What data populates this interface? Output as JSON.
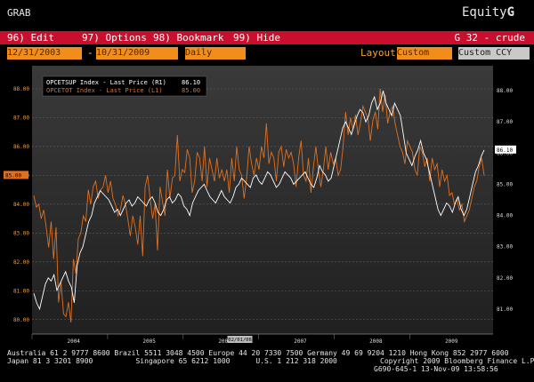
{
  "topbar": {
    "left_label": "GRAB",
    "right_label_a": "Equity",
    "right_label_b": "G"
  },
  "menu": {
    "items": [
      {
        "num": "96)",
        "label": "Edit"
      },
      {
        "num": "97)",
        "label": "Options"
      },
      {
        "num": "98)",
        "label": "Bookmark"
      },
      {
        "num": "99)",
        "label": "Hide"
      }
    ],
    "right": "G 32 - crude"
  },
  "controls": {
    "start_date": "12/31/2003",
    "end_date": "10/31/2009",
    "dash": "-",
    "period": "Daily",
    "layout_label": "Layout",
    "layout_value": "Custom",
    "ccy": "Custom CCY"
  },
  "legend": {
    "entries": [
      {
        "text": "OPCETSUP Index - Last Price (R1)",
        "value": "86.10",
        "color": "#ffffff"
      },
      {
        "text": "OPCETOT Index - Last Price (L1)",
        "value": "85.00",
        "color": "#e07020"
      }
    ]
  },
  "chart_data": {
    "type": "line",
    "x_ticks": [
      "2004",
      "2005",
      "2006",
      "2007",
      "2008",
      "2009"
    ],
    "x_highlight": "02/01/06",
    "left_axis": {
      "ticks": [
        80,
        81,
        82,
        83,
        84,
        85,
        86,
        87,
        88
      ],
      "ylim": [
        79.5,
        88.8
      ],
      "current_label": "85.00"
    },
    "right_axis": {
      "ticks": [
        81,
        82,
        83,
        84,
        85,
        86,
        87,
        88
      ],
      "ylim": [
        80.2,
        88.8
      ],
      "current_label": "86.10"
    },
    "series": [
      {
        "name": "OPCETOT Index - Last Price (L1)",
        "color": "#e07020",
        "axis": "left",
        "values": [
          84.3,
          83.9,
          84.0,
          83.5,
          83.8,
          83.2,
          82.5,
          83.4,
          82.1,
          83.2,
          80.6,
          81.3,
          80.2,
          80.1,
          80.6,
          79.9,
          82.1,
          81.6,
          82.8,
          83.0,
          83.6,
          83.4,
          84.5,
          84.0,
          84.6,
          84.8,
          84.2,
          84.5,
          84.6,
          85.0,
          84.4,
          84.8,
          84.2,
          84.0,
          83.6,
          83.8,
          84.3,
          84.0,
          83.5,
          82.9,
          83.6,
          83.2,
          82.6,
          83.6,
          82.2,
          84.6,
          85.0,
          84.2,
          83.5,
          84.0,
          82.4,
          84.6,
          84.1,
          83.6,
          85.2,
          84.2,
          84.9,
          85.0,
          86.4,
          84.8,
          85.2,
          85.1,
          85.9,
          85.6,
          84.4,
          84.8,
          85.8,
          85.6,
          84.8,
          86.0,
          84.6,
          85.6,
          85.2,
          84.8,
          85.6,
          84.9,
          85.2,
          84.8,
          85.2,
          84.4,
          85.6,
          84.8,
          86.0,
          85.2,
          85.0,
          84.2,
          84.9,
          86.0,
          85.4,
          85.0,
          85.6,
          85.2,
          86.0,
          85.6,
          86.8,
          85.4,
          85.8,
          85.6,
          84.8,
          85.8,
          86.0,
          85.3,
          85.9,
          85.6,
          85.8,
          85.4,
          84.6,
          85.6,
          86.2,
          85.0,
          84.8,
          85.6,
          84.4,
          85.3,
          86.0,
          85.2,
          84.6,
          85.2,
          86.0,
          85.2,
          85.8,
          85.4,
          85.6,
          85.0,
          85.2,
          86.0,
          87.2,
          86.4,
          87.0,
          86.6,
          87.1,
          86.4,
          86.8,
          87.4,
          87.2,
          87.0,
          86.2,
          86.9,
          87.2,
          86.6,
          88.0,
          87.2,
          87.8,
          86.8,
          87.2,
          87.4,
          86.8,
          86.4,
          86.0,
          85.8,
          85.4,
          86.2,
          86.0,
          85.8,
          85.2,
          85.0,
          86.0,
          85.8,
          85.3,
          85.6,
          84.8,
          85.6,
          85.2,
          85.4,
          84.6,
          85.2,
          84.8,
          85.0,
          84.3,
          84.4,
          84.0,
          84.2,
          83.8,
          84.0,
          83.4,
          83.6,
          83.8,
          84.2,
          84.6,
          84.8,
          85.3,
          85.6,
          85.0
        ]
      },
      {
        "name": "OPCETSUP Index - Last Price (R1)",
        "color": "#ffffff",
        "axis": "right",
        "values": [
          81.5,
          81.2,
          81.0,
          81.4,
          81.8,
          82.0,
          81.9,
          82.1,
          81.6,
          81.8,
          82.0,
          82.2,
          81.9,
          81.7,
          81.2,
          82.4,
          82.8,
          83.0,
          83.4,
          83.8,
          84.0,
          84.4,
          84.6,
          84.8,
          84.7,
          84.6,
          84.5,
          84.3,
          84.1,
          84.2,
          84.0,
          84.2,
          84.4,
          84.5,
          84.3,
          84.4,
          84.6,
          84.5,
          84.4,
          84.3,
          84.5,
          84.6,
          84.4,
          84.1,
          84.0,
          84.2,
          84.5,
          84.6,
          84.4,
          84.5,
          84.7,
          84.6,
          84.3,
          84.2,
          84.0,
          84.4,
          84.6,
          84.8,
          84.9,
          85.0,
          84.8,
          84.6,
          84.5,
          84.4,
          84.6,
          84.8,
          84.6,
          84.5,
          84.4,
          84.6,
          84.9,
          85.0,
          85.2,
          85.1,
          85.0,
          84.9,
          85.2,
          85.3,
          85.1,
          85.0,
          85.2,
          85.4,
          85.3,
          85.1,
          84.9,
          85.0,
          85.2,
          85.4,
          85.3,
          85.2,
          85.0,
          85.1,
          85.2,
          85.3,
          85.4,
          85.2,
          85.0,
          84.9,
          85.2,
          85.6,
          85.4,
          85.3,
          85.1,
          85.2,
          85.6,
          86.0,
          86.4,
          86.8,
          87.0,
          86.8,
          86.6,
          86.9,
          87.2,
          87.4,
          87.3,
          87.0,
          87.2,
          87.6,
          87.8,
          87.4,
          87.6,
          88.0,
          87.6,
          87.4,
          87.2,
          87.6,
          87.4,
          87.2,
          86.6,
          86.0,
          85.8,
          85.6,
          85.9,
          86.1,
          86.4,
          86.0,
          85.8,
          85.4,
          85.0,
          84.6,
          84.2,
          84.0,
          84.2,
          84.4,
          84.3,
          84.1,
          84.4,
          84.6,
          84.2,
          84.0,
          84.2,
          84.6,
          85.0,
          85.4,
          85.6,
          85.9,
          86.1
        ]
      }
    ],
    "grid": true,
    "legend_position": "top-left"
  },
  "footer": {
    "line1": "Australia 61 2 9777 8600 Brazil 5511 3048 4500 Europe 44 20 7330 7500 Germany 49 69 9204 1210 Hong Kong 852 2977 6000",
    "line2": "Japan 81 3 3201 8900          Singapore 65 6212 1000      U.S. 1 212 318 2000          Copyright 2009 Bloomberg Finance L.P.",
    "line3": "G690-645-1 13-Nov-09 13:58:56"
  }
}
